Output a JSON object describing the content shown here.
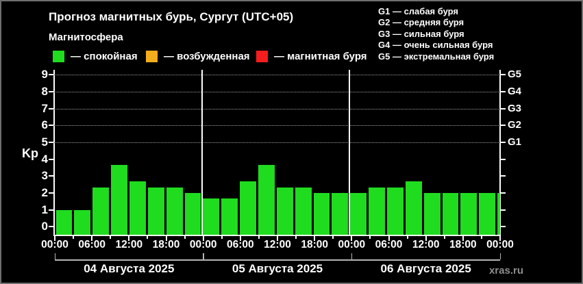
{
  "header": {
    "title": "Прогноз магнитных бурь, Сургут (UTC+05)",
    "subtitle": "Магнитосфера"
  },
  "activity_legend": [
    {
      "label": "— спокойная",
      "color": "#1fdc1f"
    },
    {
      "label": "— возбужденная",
      "color": "#f3ac1c"
    },
    {
      "label": "— магнитная буря",
      "color": "#f51d1d"
    }
  ],
  "storm_scale": [
    "G1 — слабая буря",
    "G2 — средняя буря",
    "G3 — сильная буря",
    "G4 — очень сильная буря",
    "G5 — экстремальная буря"
  ],
  "watermark": "xras.ru",
  "chart_data": {
    "type": "bar",
    "title": "Прогноз магнитных бурь, Сургут (UTC+05)",
    "xlabel": "",
    "ylabel": "Kp",
    "ylim": [
      -0.5,
      9.3
    ],
    "y_ticks": [
      0,
      1,
      2,
      3,
      4,
      5,
      6,
      7,
      8,
      9
    ],
    "gridlines_at_kp": [
      5,
      6,
      7,
      8,
      9
    ],
    "grid": "dotted horizontal at Kp 5–9 only",
    "legend_position": "top-left",
    "bar_color": "#1fdc1f",
    "interval_hours": 3,
    "slot_start_times": [
      "00:00",
      "03:00",
      "06:00",
      "09:00",
      "12:00",
      "15:00",
      "18:00",
      "21:00"
    ],
    "x_tick_labels": [
      "00:00",
      "06:00",
      "12:00",
      "18:00",
      "00:00",
      "06:00",
      "12:00",
      "18:00",
      "00:00",
      "06:00",
      "12:00",
      "18:00",
      "00:00"
    ],
    "g_levels": [
      {
        "label": "G1",
        "kp": 5
      },
      {
        "label": "G2",
        "kp": 6
      },
      {
        "label": "G3",
        "kp": 7
      },
      {
        "label": "G4",
        "kp": 8
      },
      {
        "label": "G5",
        "kp": 9
      }
    ],
    "days": [
      {
        "label": "04 Августа 2025",
        "values": [
          1.0,
          1.0,
          2.33,
          3.67,
          2.67,
          2.33,
          2.33,
          2.0
        ]
      },
      {
        "label": "05 Августа 2025",
        "values": [
          1.67,
          1.67,
          2.67,
          3.67,
          2.33,
          2.33,
          2.0,
          2.0
        ]
      },
      {
        "label": "06 Августа 2025",
        "values": [
          2.0,
          2.33,
          2.33,
          2.67,
          2.0,
          2.0,
          2.0,
          2.0
        ]
      }
    ],
    "edge_bar_value": 2.0
  }
}
